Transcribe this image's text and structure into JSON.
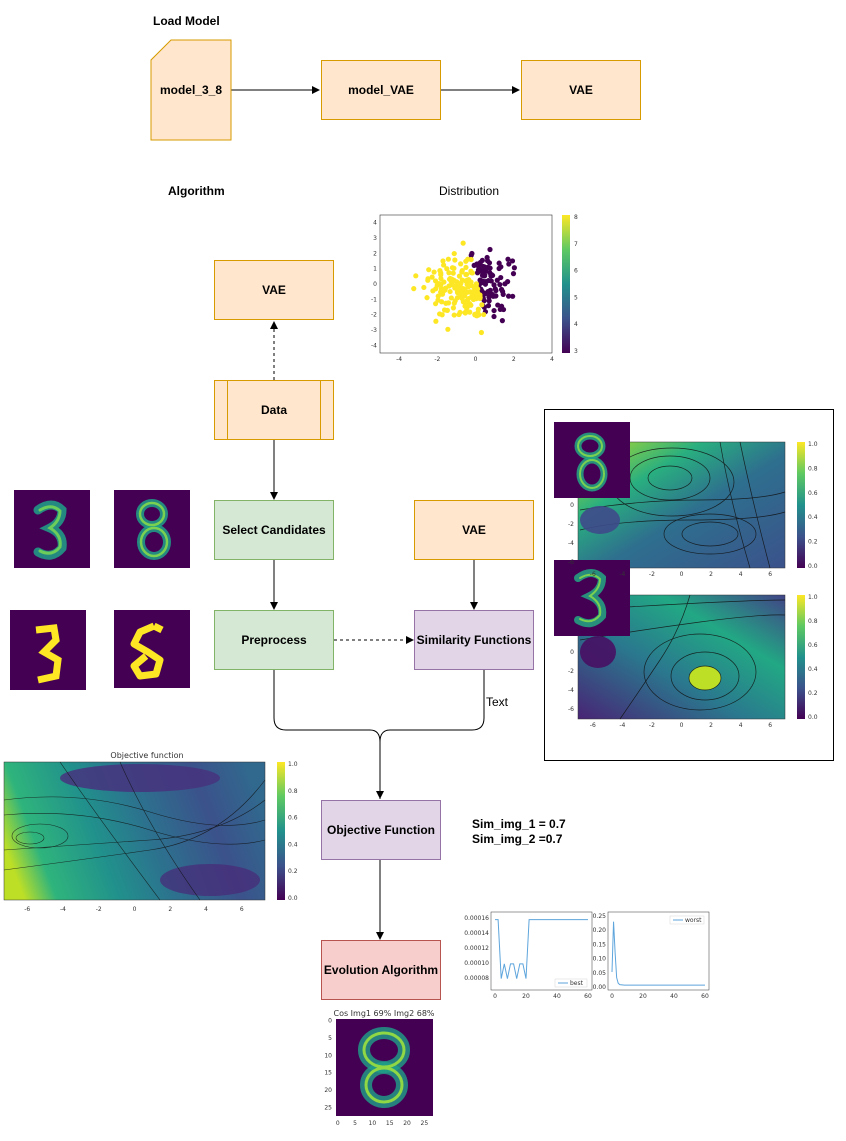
{
  "sections": {
    "load_model": "Load Model",
    "algorithm": "Algorithm",
    "distribution": "Distribution"
  },
  "nodes": {
    "model_3_8": "model_3_8",
    "model_vae": "model_VAE",
    "vae_top": "VAE",
    "vae_algo": "VAE",
    "data": "Data",
    "select_candidates": "Select Candidates",
    "vae_right": "VAE",
    "preprocess": "Preprocess",
    "similarity_functions": "Similarity Functions",
    "objective_function": "Objective Function",
    "evolution_algorithm": "Evolution Algorithm"
  },
  "edge_label": "Text",
  "similarity": {
    "line1": "Sim_img_1 = 0.7",
    "line2": "Sim_img_2  =0.7"
  },
  "plots": {
    "objective_title": "Objective function",
    "result_title": "Cos Img1 69% Img2 68%",
    "best_legend": "best",
    "worst_legend": "worst"
  },
  "colors": {
    "viridis_dark": "#440154",
    "viridis_yellow": "#fde725",
    "line_blue": "#5ea5dc"
  },
  "chart_data": [
    {
      "type": "scatter",
      "title": "Distribution",
      "xlim": [
        -5,
        4
      ],
      "ylim": [
        -4.5,
        4.5
      ],
      "x_ticks": [
        -4,
        -2,
        0,
        2,
        4
      ],
      "y_ticks": [
        4,
        3,
        2,
        1,
        0,
        -1,
        -2,
        -3,
        -4
      ],
      "colorbar_ticks": [
        8,
        7,
        6,
        5,
        4,
        3
      ],
      "series": [
        {
          "class": 8,
          "color": "#fde725"
        },
        {
          "class": 3,
          "color": "#440154"
        }
      ]
    },
    {
      "type": "line",
      "legend": "best",
      "x": [
        0,
        2,
        4,
        6,
        8,
        10,
        12,
        14,
        16,
        18,
        20,
        22,
        30,
        40,
        50,
        60
      ],
      "y": [
        0.00016,
        0.00016,
        8e-05,
        0.0001,
        8e-05,
        0.0001,
        0.0001,
        8e-05,
        0.0001,
        0.0001,
        8e-05,
        0.00016,
        0.00016,
        0.00016,
        0.00016,
        0.00016
      ],
      "x_ticks": [
        0,
        20,
        40,
        60
      ],
      "y_ticks": [
        "0.00016",
        "0.00014",
        "0.00012",
        "0.00010",
        "0.00008"
      ],
      "xlim": [
        0,
        60
      ],
      "ylim": [
        7e-05,
        0.000165
      ]
    },
    {
      "type": "line",
      "legend": "worst",
      "x": [
        0,
        1,
        2,
        3,
        4,
        5,
        8,
        20,
        40,
        60
      ],
      "y": [
        0.05,
        0.23,
        0.12,
        0.03,
        0.01,
        0.005,
        0.003,
        0.003,
        0.003,
        0.003
      ],
      "x_ticks": [
        0,
        20,
        40,
        60
      ],
      "y_ticks": [
        "0.25",
        "0.20",
        "0.15",
        "0.10",
        "0.05",
        "0.00"
      ],
      "xlim": [
        0,
        60
      ],
      "ylim": [
        0,
        0.25
      ]
    },
    {
      "type": "heatmap",
      "title": "Objective function",
      "x_ticks": [
        -6,
        -4,
        -2,
        0,
        2,
        4,
        6
      ],
      "y_ticks": [
        6,
        4,
        2,
        0,
        -2,
        -4,
        -6
      ],
      "colorbar_ticks": [
        "1.0",
        "0.8",
        "0.6",
        "0.4",
        "0.2",
        "0.0"
      ]
    },
    {
      "type": "heatmap",
      "title": "",
      "x_ticks": [
        0,
        5,
        10,
        15,
        20,
        25
      ],
      "y_ticks": [
        0,
        5,
        10,
        15,
        20,
        25
      ]
    }
  ]
}
